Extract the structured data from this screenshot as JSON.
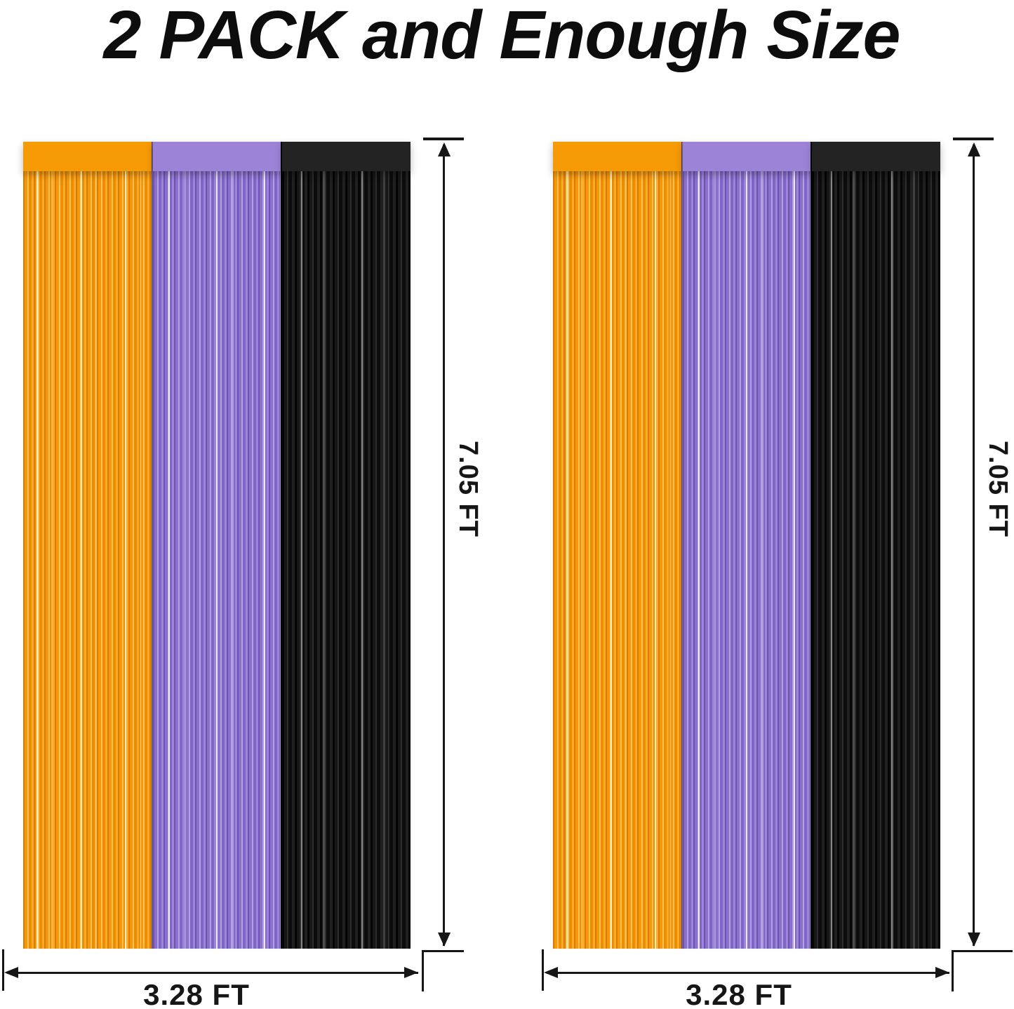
{
  "title": "2 PACK and Enough Size",
  "units": [
    {
      "id": "pack-1",
      "height_label": "7.05 FT",
      "width_label": "3.28 FT"
    },
    {
      "id": "pack-2",
      "height_label": "7.05 FT",
      "width_label": "3.28 FT"
    }
  ],
  "curtain": {
    "panels": [
      {
        "name": "orange",
        "color": "#f5980e"
      },
      {
        "name": "purple",
        "color": "#8b70cc"
      },
      {
        "name": "black",
        "color": "#161616"
      }
    ]
  },
  "dimension_color": "#161616"
}
